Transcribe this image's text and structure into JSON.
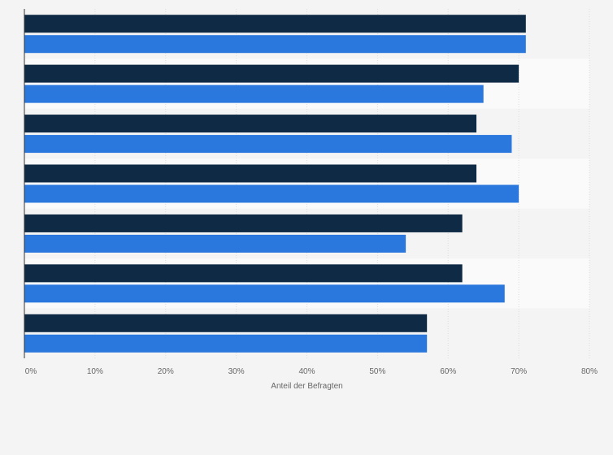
{
  "chart_data": {
    "type": "bar",
    "orientation": "horizontal",
    "title": "",
    "xlabel": "Anteil der Befragten",
    "ylabel": "",
    "xlim": [
      0,
      80
    ],
    "x_ticks": [
      "0%",
      "10%",
      "20%",
      "30%",
      "40%",
      "50%",
      "60%",
      "70%",
      "80%"
    ],
    "categories": [
      "",
      "",
      "",
      "",
      "",
      "",
      ""
    ],
    "series": [
      {
        "color": "#0f2a45",
        "values": [
          71,
          70,
          64,
          64,
          62,
          62,
          57
        ]
      },
      {
        "color": "#2a78de",
        "values": [
          71,
          65,
          69,
          70,
          54,
          68,
          57
        ]
      }
    ],
    "grid": true,
    "legend": "none"
  },
  "colors": {
    "background": "#f4f4f4",
    "band_alt": "#fafafa",
    "grid": "#dddddd",
    "axis": "#333333"
  }
}
